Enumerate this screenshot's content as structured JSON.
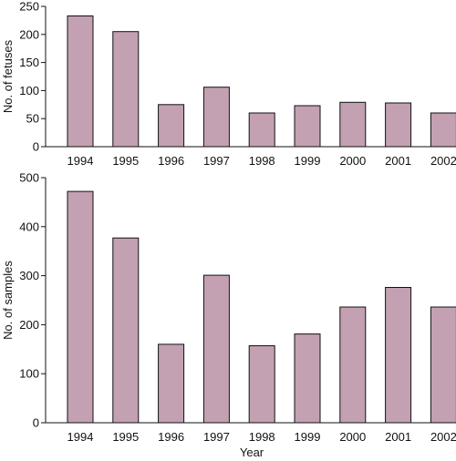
{
  "chart_data": [
    {
      "type": "bar",
      "categories": [
        "1994",
        "1995",
        "1996",
        "1997",
        "1998",
        "1999",
        "2000",
        "2001",
        "2002"
      ],
      "values": [
        233,
        205,
        75,
        106,
        60,
        73,
        79,
        78,
        60
      ],
      "title": "",
      "xlabel": "",
      "ylabel": "No. of fetuses",
      "ylim": [
        0,
        250
      ],
      "yticks": [
        0,
        50,
        100,
        150,
        200,
        250
      ],
      "grid": false,
      "bar_color": "#c4a0b3"
    },
    {
      "type": "bar",
      "categories": [
        "1994",
        "1995",
        "1996",
        "1997",
        "1998",
        "1999",
        "2000",
        "2001",
        "2002"
      ],
      "values": [
        472,
        377,
        160,
        301,
        157,
        181,
        236,
        276,
        236
      ],
      "title": "",
      "xlabel": "Year",
      "ylabel": "No. of samples",
      "ylim": [
        0,
        500
      ],
      "yticks": [
        0,
        100,
        200,
        300,
        400,
        500
      ],
      "grid": false,
      "bar_color": "#c4a0b3"
    }
  ]
}
